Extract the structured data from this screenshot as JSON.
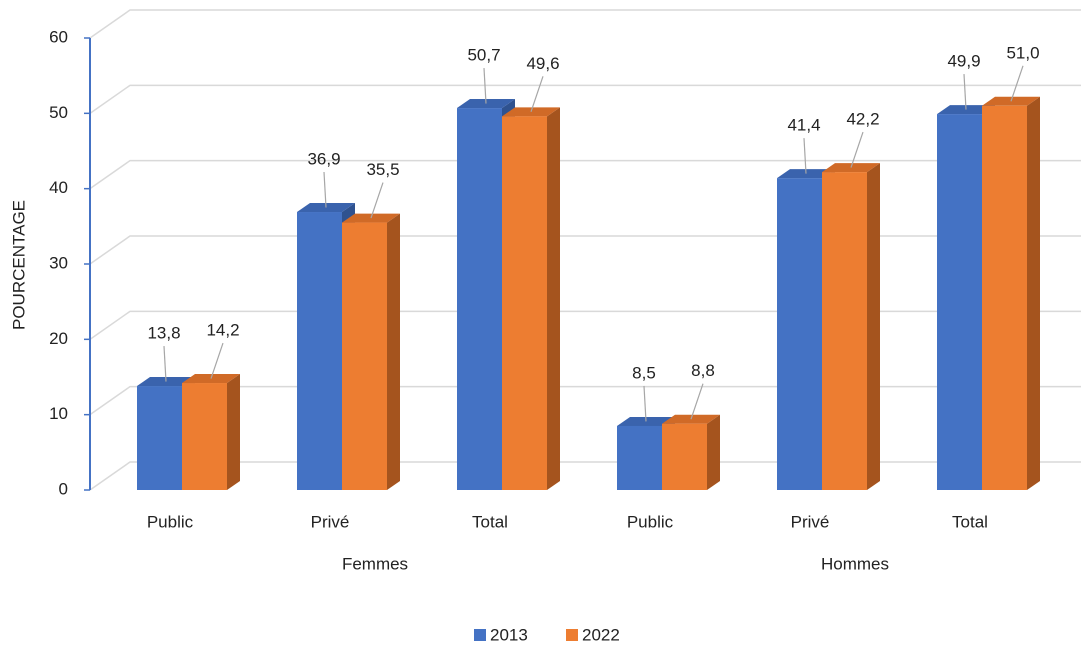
{
  "chart_data": {
    "type": "bar3d",
    "y_axis_label": "POURCENTAGE",
    "categories": [
      "Public",
      "Privé",
      "Total",
      "Public",
      "Privé",
      "Total"
    ],
    "groups": [
      "Femmes",
      "Hommes"
    ],
    "series": [
      {
        "name": "2013",
        "color": "#4472c4",
        "values": [
          13.8,
          36.9,
          50.7,
          8.5,
          41.4,
          49.9
        ],
        "value_labels": [
          "13,8",
          "36,9",
          "50,7",
          "8,5",
          "41,4",
          "49,9"
        ]
      },
      {
        "name": "2022",
        "color": "#ed7d31",
        "values": [
          14.2,
          35.5,
          49.6,
          8.8,
          42.2,
          51.0
        ],
        "value_labels": [
          "14,2",
          "35,5",
          "49,6",
          "8,8",
          "42,2",
          "51,0"
        ]
      }
    ],
    "ylim": [
      0,
      60
    ],
    "yticks": [
      0,
      10,
      20,
      30,
      40,
      50,
      60
    ],
    "grid": true,
    "legend": "bottom"
  }
}
